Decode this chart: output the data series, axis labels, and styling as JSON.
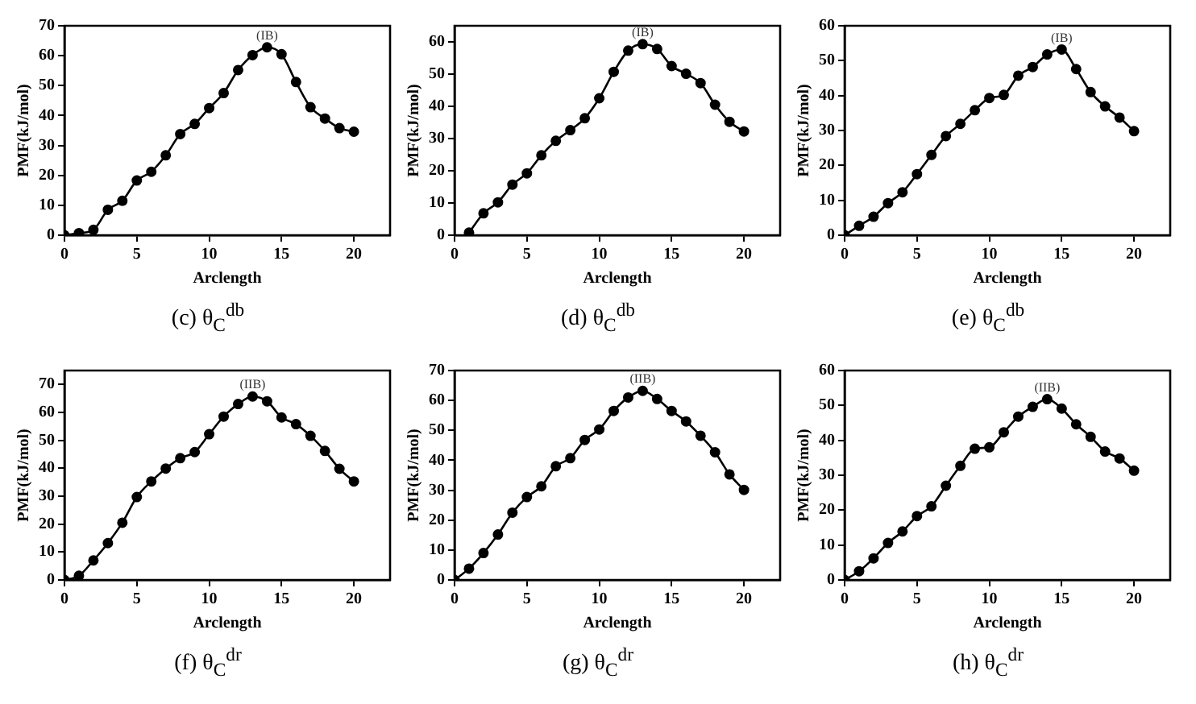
{
  "chart_data": [
    {
      "type": "line",
      "title": "(c) θ$_{C}$$^{db}$",
      "xlabel": "Arclength",
      "ylabel": "PMF(kJ/mol)",
      "x": [
        0,
        1,
        2,
        3,
        4,
        5,
        6,
        7,
        8,
        9,
        10,
        11,
        12,
        13,
        14,
        15,
        16,
        17,
        18,
        19,
        20
      ],
      "series": [
        {
          "color": "#000000",
          "values": [
            0,
            0.7,
            1.8,
            8.5,
            11.5,
            18.3,
            21.2,
            26.7,
            33.8,
            37.2,
            42.5,
            47.5,
            55.2,
            60.2,
            62.8,
            60.5,
            51.2,
            42.8,
            39.0,
            35.8,
            34.6
          ]
        }
      ],
      "xlim": [
        0,
        22.5
      ],
      "xticks": [
        0,
        5,
        10,
        15,
        20
      ],
      "ylim": [
        0,
        70
      ],
      "yticks": [
        0,
        10,
        20,
        30,
        40,
        50,
        60,
        70
      ],
      "marker": "circle",
      "grid": false,
      "annotations": [
        {
          "text": "(IB)",
          "x": 14,
          "y": 62.8
        }
      ]
    },
    {
      "type": "line",
      "title": "(d) θ$_{C}$$^{db}$",
      "xlabel": "Arclength",
      "ylabel": "PMF(kJ/mol)",
      "x": [
        1,
        2,
        3,
        4,
        5,
        6,
        7,
        8,
        9,
        10,
        11,
        12,
        13,
        14,
        15,
        16,
        17,
        18,
        19,
        20
      ],
      "series": [
        {
          "color": "#000000",
          "values": [
            0.8,
            6.8,
            10.2,
            15.7,
            19.2,
            24.8,
            29.3,
            32.6,
            36.3,
            42.5,
            50.7,
            57.3,
            59.3,
            57.8,
            52.5,
            50.1,
            47.2,
            40.5,
            35.2,
            32.2
          ]
        }
      ],
      "xlim": [
        0,
        22.5
      ],
      "xticks": [
        0,
        5,
        10,
        15,
        20
      ],
      "ylim": [
        0,
        65
      ],
      "yticks": [
        0,
        10,
        20,
        30,
        40,
        50,
        60
      ],
      "marker": "circle",
      "grid": false,
      "annotations": [
        {
          "text": "(IB)",
          "x": 13,
          "y": 59.3
        }
      ]
    },
    {
      "type": "line",
      "title": "(e) θ$_{C}$$^{db}$",
      "xlabel": "Arclength",
      "ylabel": "PMF(kJ/mol)",
      "x": [
        0,
        1,
        2,
        3,
        4,
        5,
        6,
        7,
        8,
        9,
        10,
        11,
        12,
        13,
        14,
        15,
        16,
        17,
        18,
        19,
        20
      ],
      "series": [
        {
          "color": "#000000",
          "values": [
            0,
            2.7,
            5.3,
            9.2,
            12.3,
            17.5,
            23.0,
            28.4,
            31.9,
            35.8,
            39.3,
            40.2,
            45.7,
            48.2,
            51.8,
            53.2,
            47.6,
            41.0,
            36.9,
            33.7,
            29.8
          ]
        }
      ],
      "xlim": [
        0,
        22.5
      ],
      "xticks": [
        0,
        5,
        10,
        15,
        20
      ],
      "ylim": [
        0,
        60
      ],
      "yticks": [
        0,
        10,
        20,
        30,
        40,
        50,
        60
      ],
      "marker": "circle",
      "grid": false,
      "annotations": [
        {
          "text": "(IB)",
          "x": 15,
          "y": 53.2
        }
      ]
    },
    {
      "type": "line",
      "title": "(f) θ$_{C}$$^{dr}$",
      "xlabel": "Arclength",
      "ylabel": "PMF(kJ/mol)",
      "x": [
        0,
        1,
        2,
        3,
        4,
        5,
        6,
        7,
        8,
        9,
        10,
        11,
        12,
        13,
        14,
        15,
        16,
        17,
        18,
        19,
        20
      ],
      "series": [
        {
          "color": "#000000",
          "values": [
            0,
            1.5,
            7.0,
            13.2,
            20.5,
            29.7,
            35.3,
            39.9,
            43.6,
            45.8,
            52.2,
            58.5,
            63.0,
            65.7,
            64.0,
            58.2,
            55.8,
            51.6,
            46.2,
            39.8,
            35.3
          ]
        }
      ],
      "xlim": [
        0,
        22.5
      ],
      "xticks": [
        0,
        5,
        10,
        15,
        20
      ],
      "ylim": [
        0,
        75
      ],
      "yticks": [
        0,
        10,
        20,
        30,
        40,
        50,
        60,
        70
      ],
      "marker": "circle",
      "grid": false,
      "annotations": [
        {
          "text": "(IIB)",
          "x": 13,
          "y": 65.7
        }
      ]
    },
    {
      "type": "line",
      "title": "(g) θ$_{C}$$^{dr}$",
      "xlabel": "Arclength",
      "ylabel": "PMF(kJ/mol)",
      "x": [
        0,
        1,
        2,
        3,
        4,
        5,
        6,
        7,
        8,
        9,
        10,
        11,
        12,
        13,
        14,
        15,
        16,
        17,
        18,
        19,
        20
      ],
      "series": [
        {
          "color": "#000000",
          "values": [
            0,
            3.8,
            9.0,
            15.2,
            22.5,
            27.7,
            31.3,
            38.0,
            40.7,
            46.8,
            50.3,
            56.5,
            61.0,
            63.2,
            60.5,
            56.5,
            53.0,
            48.2,
            42.7,
            35.3,
            30.1
          ]
        }
      ],
      "xlim": [
        0,
        22.5
      ],
      "xticks": [
        0,
        5,
        10,
        15,
        20
      ],
      "ylim": [
        0,
        70
      ],
      "yticks": [
        0,
        10,
        20,
        30,
        40,
        50,
        60,
        70
      ],
      "marker": "circle",
      "grid": false,
      "annotations": [
        {
          "text": "(IIB)",
          "x": 13,
          "y": 63.2
        }
      ]
    },
    {
      "type": "line",
      "title": "(h) θ$_{C}$$^{dr}$",
      "xlabel": "Arclength",
      "ylabel": "PMF(kJ/mol)",
      "x": [
        0,
        1,
        2,
        3,
        4,
        5,
        6,
        7,
        8,
        9,
        10,
        11,
        12,
        13,
        14,
        15,
        16,
        17,
        18,
        19,
        20
      ],
      "series": [
        {
          "color": "#000000",
          "values": [
            0,
            2.5,
            6.2,
            10.6,
            13.9,
            18.3,
            21.1,
            27.0,
            32.7,
            37.6,
            38.0,
            42.3,
            46.8,
            49.6,
            51.8,
            49.1,
            44.6,
            41.0,
            36.8,
            34.8,
            31.3
          ]
        }
      ],
      "xlim": [
        0,
        22.5
      ],
      "xticks": [
        0,
        5,
        10,
        15,
        20
      ],
      "ylim": [
        0,
        60
      ],
      "yticks": [
        0,
        10,
        20,
        30,
        40,
        50,
        60
      ],
      "marker": "circle",
      "grid": false,
      "annotations": [
        {
          "text": "(IIB)",
          "x": 14,
          "y": 51.8
        }
      ]
    }
  ]
}
